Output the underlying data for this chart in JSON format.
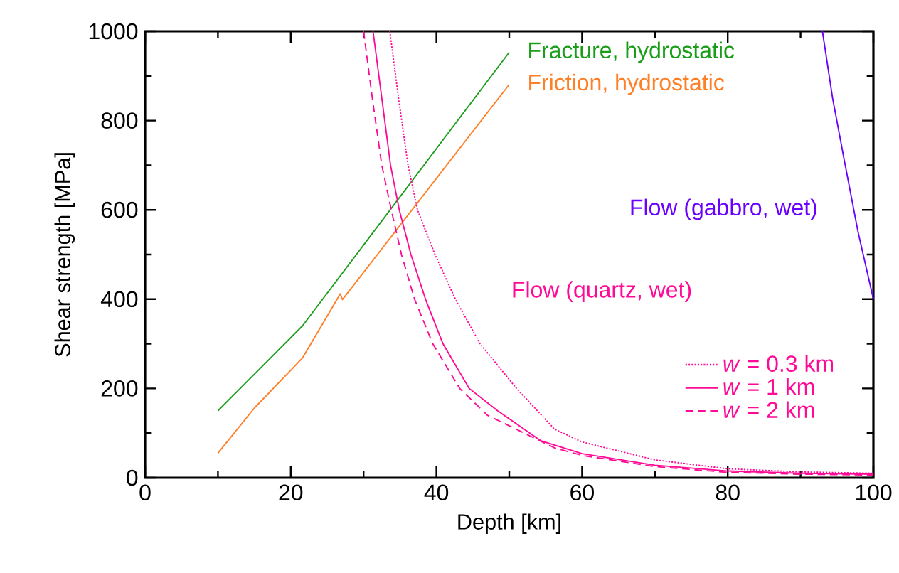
{
  "chart_data": {
    "type": "line",
    "xlabel": "Depth [km]",
    "ylabel": "Shear strength [MPa]",
    "legend_title": "Flow (quartz, wet)",
    "legend": "bottom right",
    "grid": false,
    "xlim": [
      0,
      100
    ],
    "ylim": [
      0,
      1000
    ],
    "xticks": [
      0,
      {
        "value": 10,
        "label": null
      },
      20,
      {
        "value": 30,
        "label": null
      },
      40,
      {
        "value": 50,
        "label": null
      },
      60,
      {
        "value": 70,
        "label": null
      },
      80,
      {
        "value": 90,
        "label": null
      },
      100
    ],
    "yticks": [
      0,
      {
        "value": 100,
        "label": null
      },
      200,
      {
        "value": 300,
        "label": null
      },
      400,
      {
        "value": 500,
        "label": null
      },
      600,
      {
        "value": 700,
        "label": null
      },
      800,
      {
        "value": 900,
        "label": null
      },
      1000
    ],
    "series": [
      {
        "name": "Fracture, hydrostatic",
        "color": "#1a9e1a",
        "x": [
          10,
          15.2,
          21.6,
          50
        ],
        "values": [
          150,
          235,
          340,
          953
        ]
      },
      {
        "name": "Friction, hydrostatic",
        "color": "#ff7f27",
        "x": [
          10,
          15,
          21.6,
          26.8,
          27.1,
          50
        ],
        "values": [
          55,
          156,
          268,
          412,
          399,
          881
        ]
      },
      {
        "name": "Flow (gabbro, wet)",
        "color": "#6a00ff",
        "x": [
          93.0,
          94.4,
          95.9,
          97.9,
          100
        ],
        "values": [
          1000,
          850,
          720,
          550,
          400
        ]
      },
      {
        "name": "*w* = 0.3 km",
        "color": "#ff0a96",
        "line_style": "dotted",
        "x": [
          33.6,
          34.8,
          36.1,
          37.4,
          39.8,
          42.6,
          46,
          51,
          56.2,
          60,
          70,
          80,
          90,
          100
        ],
        "values": [
          1000,
          850,
          700,
          600,
          500,
          400,
          300,
          200,
          109,
          80,
          40,
          20,
          13,
          10
        ]
      },
      {
        "name": "*w* = 1 km",
        "color": "#ff0a96",
        "line_style": "solid",
        "x": [
          31.3,
          32.5,
          33.7,
          34.9,
          36.5,
          38.5,
          40.9,
          44.5,
          48.4,
          54.3,
          60,
          70,
          80,
          90,
          100
        ],
        "values": [
          1000,
          850,
          700,
          600,
          500,
          400,
          300,
          200,
          150,
          83,
          54,
          28,
          15,
          10,
          8
        ]
      },
      {
        "name": "*w* = 2 km",
        "color": "#ff0a96",
        "line_style": "dashed",
        "x": [
          30.0,
          31.2,
          32.5,
          33.8,
          35.2,
          37.0,
          39.5,
          43.2,
          47,
          56.2,
          60,
          70,
          80,
          90,
          100
        ],
        "values": [
          1000,
          850,
          700,
          600,
          500,
          400,
          300,
          200,
          140,
          67,
          50,
          25,
          12,
          8,
          6
        ]
      }
    ]
  }
}
